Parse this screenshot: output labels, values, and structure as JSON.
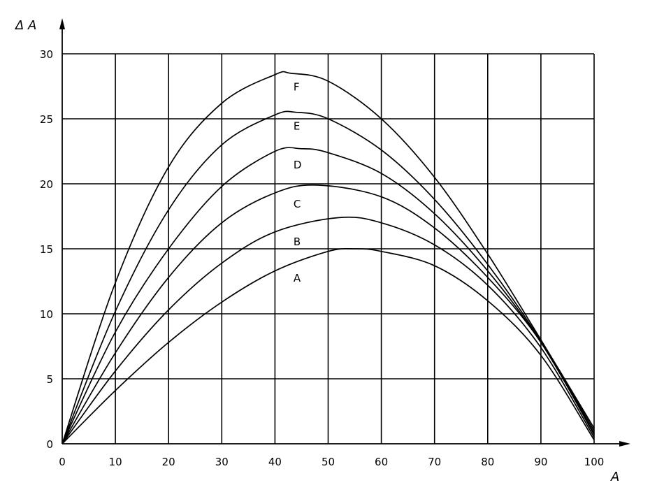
{
  "chart_data": {
    "type": "line",
    "title": "",
    "xlabel": "A",
    "ylabel": "Δ A",
    "xlim": [
      0,
      100
    ],
    "ylim": [
      0,
      30
    ],
    "x_ticks": [
      0,
      10,
      20,
      30,
      40,
      50,
      60,
      70,
      80,
      90,
      100
    ],
    "y_ticks": [
      0,
      5,
      10,
      15,
      20,
      25,
      30
    ],
    "grid": true,
    "legend": "none",
    "series": [
      {
        "name": "A",
        "label_at": [
          44,
          12.8
        ],
        "x": [
          0,
          10,
          20,
          30,
          40,
          50,
          55,
          60,
          70,
          80,
          90,
          100
        ],
        "y": [
          0,
          4.1,
          7.8,
          10.9,
          13.3,
          14.8,
          15.0,
          14.8,
          13.7,
          11.0,
          6.8,
          0.3
        ]
      },
      {
        "name": "B",
        "label_at": [
          44,
          15.6
        ],
        "x": [
          0,
          10,
          20,
          30,
          40,
          52,
          60,
          70,
          80,
          90,
          100
        ],
        "y": [
          0,
          5.6,
          10.3,
          13.9,
          16.3,
          17.4,
          17.0,
          15.3,
          12.2,
          7.4,
          0.5
        ]
      },
      {
        "name": "C",
        "label_at": [
          44,
          18.5
        ],
        "x": [
          0,
          10,
          20,
          30,
          40,
          48,
          60,
          70,
          80,
          90,
          100
        ],
        "y": [
          0,
          7.0,
          12.8,
          17.0,
          19.3,
          19.9,
          19.0,
          16.6,
          12.8,
          7.8,
          0.7
        ]
      },
      {
        "name": "D",
        "label_at": [
          44,
          21.5
        ],
        "x": [
          0,
          10,
          20,
          30,
          40,
          45,
          50,
          60,
          70,
          80,
          90,
          100
        ],
        "y": [
          0,
          8.6,
          15.0,
          19.8,
          22.5,
          22.7,
          22.4,
          20.8,
          17.7,
          13.3,
          7.8,
          0.8
        ]
      },
      {
        "name": "E",
        "label_at": [
          44,
          24.5
        ],
        "x": [
          0,
          10,
          20,
          30,
          40,
          44,
          50,
          60,
          70,
          80,
          90,
          100
        ],
        "y": [
          0,
          10.2,
          18.0,
          23.0,
          25.3,
          25.5,
          25.0,
          22.6,
          18.8,
          13.8,
          7.9,
          1.0
        ]
      },
      {
        "name": "F",
        "label_at": [
          44,
          27.5
        ],
        "x": [
          0,
          10,
          20,
          30,
          40,
          43,
          50,
          60,
          70,
          80,
          90,
          100
        ],
        "y": [
          0,
          12.4,
          21.3,
          26.2,
          28.4,
          28.5,
          27.9,
          25.0,
          20.5,
          14.6,
          8.0,
          1.2
        ]
      }
    ]
  }
}
